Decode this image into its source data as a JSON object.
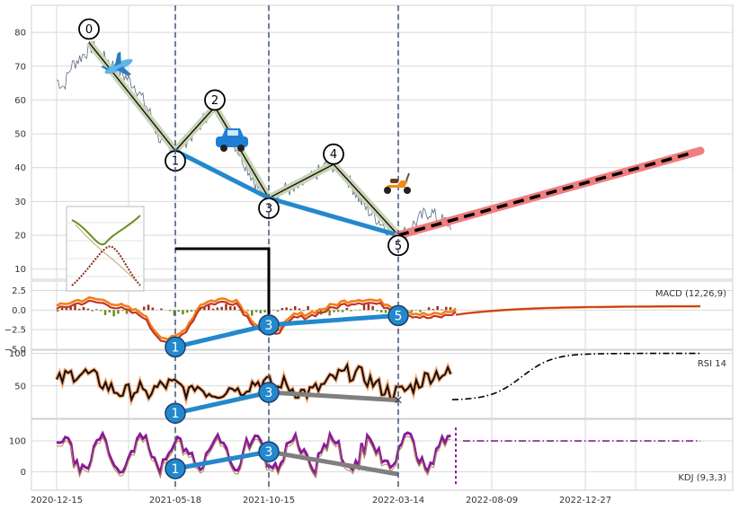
{
  "chart_data": {
    "type": "line",
    "x_ticks": [
      "2020-12-15",
      "2021-05-18",
      "2021-10-15",
      "2022-03-14",
      "2022-08-09",
      "2022-12-27"
    ],
    "price_panel": {
      "yticks": [
        10,
        20,
        30,
        40,
        50,
        60,
        70,
        80
      ],
      "ylim": [
        7,
        88
      ],
      "price_series": [
        [
          0,
          66
        ],
        [
          2,
          64
        ],
        [
          4,
          70
        ],
        [
          6,
          72
        ],
        [
          8,
          74
        ],
        [
          10,
          76
        ],
        [
          12,
          73
        ],
        [
          14,
          72
        ],
        [
          16,
          70
        ],
        [
          18,
          68
        ],
        [
          20,
          66
        ],
        [
          22,
          64
        ],
        [
          24,
          60
        ],
        [
          26,
          56
        ],
        [
          28,
          50
        ],
        [
          30,
          46
        ],
        [
          32,
          44
        ],
        [
          34,
          46
        ],
        [
          36,
          48
        ],
        [
          38,
          50
        ],
        [
          40,
          53
        ],
        [
          42,
          56
        ],
        [
          44,
          58
        ],
        [
          46,
          55
        ],
        [
          48,
          50
        ],
        [
          50,
          46
        ],
        [
          52,
          42
        ],
        [
          54,
          38
        ],
        [
          56,
          34
        ],
        [
          58,
          30
        ],
        [
          60,
          31
        ],
        [
          62,
          33
        ],
        [
          64,
          34
        ],
        [
          66,
          33
        ],
        [
          68,
          35
        ],
        [
          70,
          36
        ],
        [
          72,
          38
        ],
        [
          74,
          40
        ],
        [
          76,
          41
        ],
        [
          78,
          40
        ],
        [
          80,
          38
        ],
        [
          82,
          35
        ],
        [
          84,
          31
        ],
        [
          86,
          28
        ],
        [
          88,
          26
        ],
        [
          90,
          24
        ],
        [
          92,
          22
        ],
        [
          94,
          21
        ],
        [
          96,
          20
        ],
        [
          98,
          22
        ],
        [
          100,
          24
        ],
        [
          102,
          26
        ],
        [
          104,
          27
        ],
        [
          106,
          25
        ],
        [
          108,
          24
        ],
        [
          110,
          23
        ]
      ],
      "wave_points": [
        {
          "label": "0",
          "x": 9,
          "y": 77
        },
        {
          "label": "1",
          "x": 33,
          "y": 45
        },
        {
          "label": "2",
          "x": 44,
          "y": 58
        },
        {
          "label": "3",
          "x": 59,
          "y": 31
        },
        {
          "label": "4",
          "x": 77,
          "y": 41
        },
        {
          "label": "5",
          "x": 95,
          "y": 20
        }
      ],
      "label_offsets": {
        "0": 81,
        "1": 42,
        "2": 60,
        "3": 28,
        "4": 44,
        "5": 17
      },
      "blue_line": [
        [
          33,
          45
        ],
        [
          59,
          31
        ],
        [
          95,
          20
        ]
      ],
      "projection": {
        "start": [
          95,
          20
        ],
        "end": [
          179,
          45
        ]
      },
      "vlines_x": [
        33,
        59,
        95
      ]
    },
    "macd_panel": {
      "label": "MACD (12,26,9)",
      "yticks": [
        "2.5",
        "0.0",
        "−2.5",
        "−5.0"
      ],
      "ytick_values": [
        2.5,
        0.0,
        -2.5,
        -5.0
      ],
      "ylim": [
        -5,
        3.7
      ],
      "markers": [
        {
          "label": "1",
          "x": 33,
          "y": -4.7
        },
        {
          "label": "3",
          "x": 59,
          "y": -1.9
        },
        {
          "label": "5",
          "x": 95,
          "y": -0.7
        }
      ]
    },
    "rsi_panel": {
      "label": "RSI 14",
      "yticks": [
        "100",
        "50"
      ],
      "ytick_values": [
        100,
        50
      ],
      "ylim": [
        0,
        105
      ],
      "markers": [
        {
          "label": "1",
          "x": 33,
          "y": 8
        },
        {
          "label": "3",
          "x": 59,
          "y": 40
        }
      ]
    },
    "kdj_panel": {
      "label": "KDJ (9,3,3)",
      "yticks": [
        "100",
        "0"
      ],
      "ytick_values": [
        100,
        0
      ],
      "ylim": [
        -60,
        170
      ],
      "markers": [
        {
          "label": "1",
          "x": 33,
          "y": 10
        },
        {
          "label": "3",
          "x": 59,
          "y": 65
        }
      ]
    },
    "xlim": [
      -7,
      188
    ],
    "colors": {
      "price": "#5a6a80",
      "wave": "#111111",
      "wave_halo": "#c9d4b4",
      "blue": "#2389cc",
      "projection": "#f07e7e",
      "macd_fast": "#f57f17",
      "macd_slow": "#c0392b",
      "rsi": "#111111",
      "rsi_halo": "#ffab76",
      "kdj": "#8b1a9b",
      "grey_trend": "#7f7f7f",
      "grid": "#d9d9d9",
      "vline": "#4a5f80"
    }
  }
}
